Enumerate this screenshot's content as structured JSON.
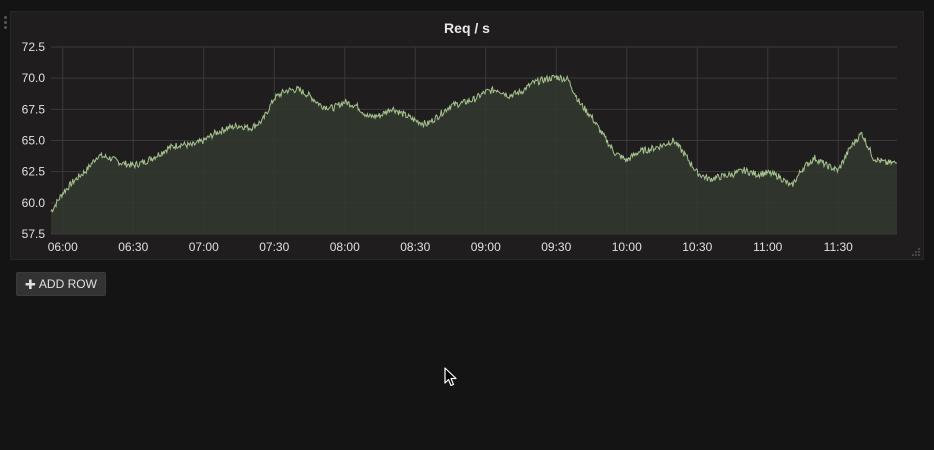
{
  "panel": {
    "title": "Req / s"
  },
  "toolbar": {
    "add_row_label": "ADD ROW",
    "add_row_icon": "plus-icon"
  },
  "colors": {
    "series_line": "#a6c38f",
    "series_fill": "#323a2f",
    "grid": "#3a3a3a",
    "background": "#141414",
    "panel_bg": "#1f1d1d"
  },
  "chart_data": {
    "type": "area",
    "title": "Req / s",
    "xlabel": "",
    "ylabel": "",
    "grid": true,
    "legend": "none",
    "ylim": [
      57.5,
      72.5
    ],
    "yticks": [
      "57.5",
      "60.0",
      "62.5",
      "65.0",
      "67.5",
      "70.0",
      "72.5"
    ],
    "xticks": [
      "06:00",
      "06:30",
      "07:00",
      "07:30",
      "08:00",
      "08:30",
      "09:00",
      "09:30",
      "10:00",
      "10:30",
      "11:00",
      "11:30"
    ],
    "xlim": [
      "05:55",
      "11:55"
    ],
    "series": [
      {
        "x": [
          "05:55",
          "06:00",
          "06:05",
          "06:10",
          "06:15",
          "06:20",
          "06:25",
          "06:30",
          "06:35",
          "06:40",
          "06:45",
          "06:50",
          "06:55",
          "07:00",
          "07:05",
          "07:10",
          "07:15",
          "07:20",
          "07:25",
          "07:30",
          "07:35",
          "07:40",
          "07:45",
          "07:50",
          "07:55",
          "08:00",
          "08:05",
          "08:10",
          "08:15",
          "08:20",
          "08:25",
          "08:30",
          "08:35",
          "08:40",
          "08:45",
          "08:50",
          "08:55",
          "09:00",
          "09:05",
          "09:10",
          "09:15",
          "09:20",
          "09:25",
          "09:30",
          "09:35",
          "09:40",
          "09:45",
          "09:50",
          "09:55",
          "10:00",
          "10:05",
          "10:10",
          "10:15",
          "10:20",
          "10:25",
          "10:30",
          "10:35",
          "10:40",
          "10:45",
          "10:50",
          "10:55",
          "11:00",
          "11:05",
          "11:10",
          "11:15",
          "11:20",
          "11:25",
          "11:30",
          "11:35",
          "11:40",
          "11:45",
          "11:50",
          "11:55"
        ],
        "values": [
          59.3,
          60.8,
          61.8,
          62.6,
          63.8,
          63.6,
          63.2,
          63.0,
          63.3,
          63.8,
          64.4,
          64.7,
          64.6,
          65.0,
          65.6,
          66.0,
          66.2,
          66.0,
          66.6,
          68.4,
          69.0,
          69.1,
          68.6,
          67.8,
          67.6,
          68.1,
          67.8,
          66.9,
          67.0,
          67.6,
          67.1,
          66.6,
          66.3,
          67.0,
          67.8,
          68.0,
          68.3,
          68.9,
          69.1,
          68.6,
          68.9,
          69.6,
          69.9,
          70.1,
          69.9,
          68.0,
          66.9,
          65.4,
          64.0,
          63.4,
          64.1,
          64.3,
          64.6,
          65.0,
          63.8,
          62.4,
          61.9,
          62.1,
          62.3,
          62.6,
          62.3,
          62.4,
          62.1,
          61.3,
          62.8,
          63.6,
          63.0,
          62.6,
          64.4,
          65.6,
          63.6,
          63.2,
          63.2
        ]
      }
    ]
  }
}
